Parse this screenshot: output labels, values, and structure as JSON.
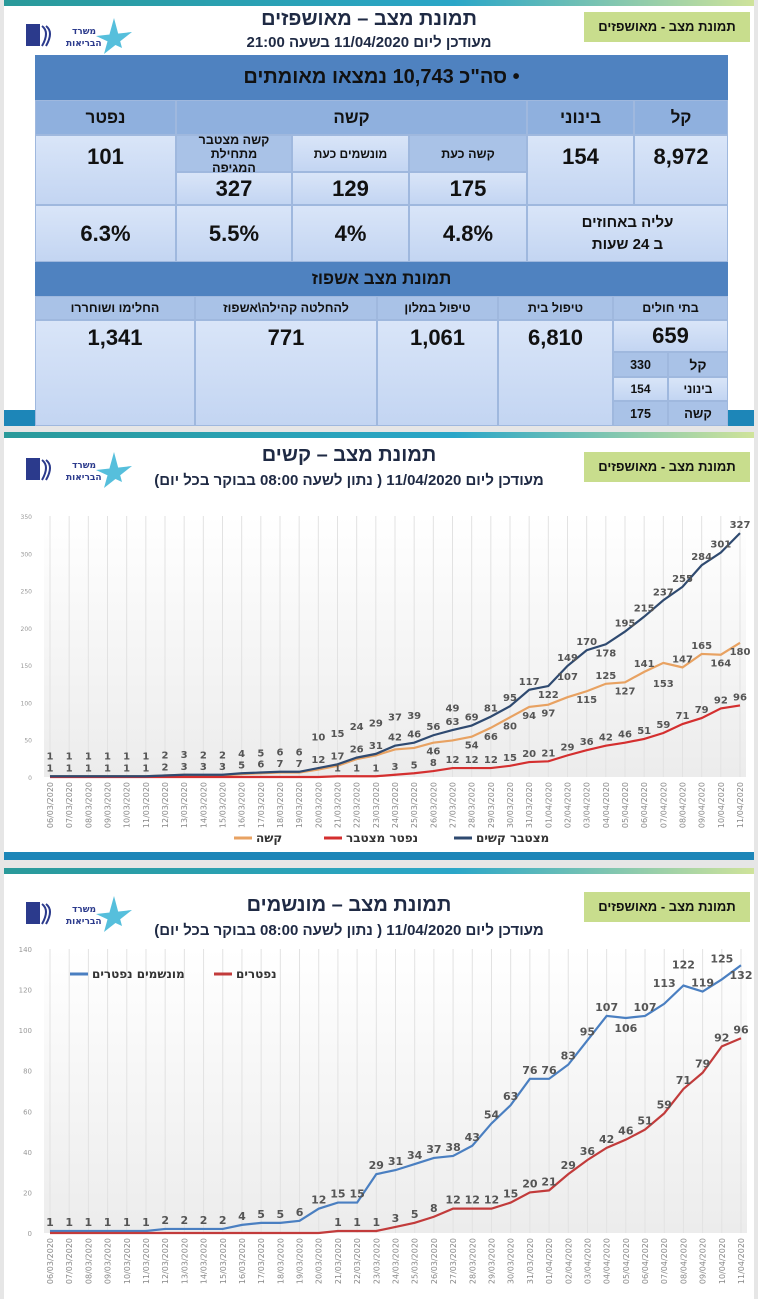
{
  "panel1": {
    "title": "תמונת מצב – מאושפזים",
    "subtitle": "מעודכן ליום 11/04/2020 בשעה 21:00",
    "tag": "תמונת מצב - מאושפזים",
    "logo_text": "משרד הבריאות",
    "total": "• סה\"כ 10,743 נמצאו מאומתים",
    "headers": {
      "mild": "קל",
      "moderate": "בינוני",
      "severe": "קשה",
      "dead": "נפטר"
    },
    "subheaders": {
      "severe_now": "קשה כעת",
      "ventilated_now": "מונשמים כעת",
      "severe_cumulative": "קשה מצטבר מתחילת המגיפה"
    },
    "values": {
      "mild": "8,972",
      "moderate": "154",
      "severe_now": "175",
      "ventilated_now": "129",
      "severe_cumulative": "327",
      "dead": "101"
    },
    "pct_label": "עליה באחוזים ב 24 שעות",
    "pct": {
      "severe_now": "4.8%",
      "ventilated_now": "4%",
      "severe_cumulative": "5.5%",
      "dead": "6.3%"
    },
    "hosp_title": "תמונת מצב אשפוז",
    "hosp_headers": {
      "hospitals": "בתי חולים",
      "home": "טיפול בית",
      "hotel": "טיפול במלון",
      "community": "להחלטה קהילה\\אשפוז",
      "recovered": "החלימו ושוחררו"
    },
    "hosp_values": {
      "hospitals": "659",
      "home": "6,810",
      "hotel": "1,061",
      "community": "771",
      "recovered": "1,341"
    },
    "hosp_breakdown": [
      {
        "label": "קל",
        "value": "330"
      },
      {
        "label": "בינוני",
        "value": "154"
      },
      {
        "label": "קשה",
        "value": "175"
      }
    ]
  },
  "panel2": {
    "title": "תמונת מצב – קשים",
    "subtitle": "מעודכן ליום 11/04/2020 ( נתון לשעה 08:00 בבוקר בכל יום)",
    "tag": "תמונת מצב - מאושפזים",
    "logo_text": "משרד הבריאות"
  },
  "panel3": {
    "title": "תמונת מצב – מונשמים",
    "subtitle": "מעודכן ליום 11/04/2020 ( נתון לשעה 08:00 בבוקר בכל יום)",
    "tag": "תמונת מצב - מאושפזים",
    "logo_text": "משרד הבריאות"
  },
  "chart_data": [
    {
      "type": "line",
      "ylim": [
        0,
        350
      ],
      "yticks": [
        0,
        50,
        100,
        150,
        200,
        250,
        300,
        350
      ],
      "grid": "vertical",
      "legend": "bottom",
      "categories": [
        "06/03/2020",
        "07/03/2020",
        "08/03/2020",
        "09/03/2020",
        "10/03/2020",
        "11/03/2020",
        "12/03/2020",
        "13/03/2020",
        "14/03/2020",
        "15/03/2020",
        "16/03/2020",
        "17/03/2020",
        "18/03/2020",
        "19/03/2020",
        "20/03/2020",
        "21/03/2020",
        "22/03/2020",
        "23/03/2020",
        "24/03/2020",
        "25/03/2020",
        "26/03/2020",
        "27/03/2020",
        "28/03/2020",
        "29/03/2020",
        "30/03/2020",
        "31/03/2020",
        "01/04/2020",
        "02/04/2020",
        "03/04/2020",
        "04/04/2020",
        "05/04/2020",
        "06/04/2020",
        "07/04/2020",
        "08/04/2020",
        "09/04/2020",
        "10/04/2020",
        "11/04/2020"
      ],
      "series": [
        {
          "name": "קשה",
          "color": "#e8a262",
          "label_pos": "below",
          "values": [
            1,
            1,
            1,
            1,
            1,
            1,
            2,
            3,
            2,
            2,
            4,
            5,
            6,
            6,
            10,
            15,
            24,
            29,
            37,
            39,
            46,
            49,
            54,
            66,
            80,
            94,
            97,
            107,
            115,
            125,
            127,
            141,
            153,
            147,
            165,
            164,
            180
          ]
        },
        {
          "name": "נפטר מצטבר",
          "color": "#d42f2f",
          "label_pos": "above",
          "values": [
            0,
            0,
            0,
            0,
            0,
            0,
            0,
            0,
            0,
            0,
            0,
            0,
            0,
            0,
            0,
            1,
            1,
            1,
            3,
            5,
            8,
            12,
            12,
            12,
            15,
            20,
            21,
            29,
            36,
            42,
            46,
            51,
            59,
            71,
            79,
            92,
            96
          ]
        },
        {
          "name": "מצטבר קשים",
          "color": "#2f4a70",
          "label_pos": "above",
          "values": [
            1,
            1,
            1,
            1,
            1,
            1,
            2,
            3,
            3,
            3,
            5,
            6,
            7,
            7,
            12,
            17,
            26,
            31,
            42,
            46,
            56,
            63,
            69,
            81,
            95,
            117,
            122,
            149,
            170,
            178,
            195,
            215,
            237,
            255,
            284,
            301,
            327
          ]
        }
      ]
    },
    {
      "type": "line",
      "ylim": [
        0,
        140
      ],
      "yticks": [
        0,
        20,
        40,
        60,
        80,
        100,
        120,
        140
      ],
      "grid": "vertical",
      "legend": "top-left",
      "categories": [
        "06/03/2020",
        "07/03/2020",
        "08/03/2020",
        "09/03/2020",
        "10/03/2020",
        "11/03/2020",
        "12/03/2020",
        "13/03/2020",
        "14/03/2020",
        "15/03/2020",
        "16/03/2020",
        "17/03/2020",
        "18/03/2020",
        "19/03/2020",
        "20/03/2020",
        "21/03/2020",
        "22/03/2020",
        "23/03/2020",
        "24/03/2020",
        "25/03/2020",
        "26/03/2020",
        "27/03/2020",
        "28/03/2020",
        "29/03/2020",
        "30/03/2020",
        "31/03/2020",
        "01/04/2020",
        "02/04/2020",
        "03/04/2020",
        "04/04/2020",
        "05/04/2020",
        "06/04/2020",
        "07/04/2020",
        "08/04/2020",
        "09/04/2020",
        "10/04/2020",
        "11/04/2020"
      ],
      "series": [
        {
          "name": "מונשמים נפטרים",
          "color": "#4a7fc1",
          "label_pos": "above",
          "values": [
            1,
            1,
            1,
            1,
            1,
            1,
            2,
            2,
            2,
            2,
            4,
            5,
            5,
            6,
            12,
            15,
            15,
            29,
            31,
            34,
            37,
            38,
            43,
            54,
            63,
            76,
            76,
            83,
            95,
            107,
            106,
            107,
            113,
            122,
            119,
            125,
            132
          ]
        },
        {
          "name": "נפטרים",
          "color": "#c23b3b",
          "label_pos": "above",
          "values": [
            0,
            0,
            0,
            0,
            0,
            0,
            0,
            0,
            0,
            0,
            0,
            0,
            0,
            0,
            0,
            1,
            1,
            1,
            3,
            5,
            8,
            12,
            12,
            12,
            15,
            20,
            21,
            29,
            36,
            42,
            46,
            51,
            59,
            71,
            79,
            92,
            96
          ]
        }
      ]
    }
  ]
}
